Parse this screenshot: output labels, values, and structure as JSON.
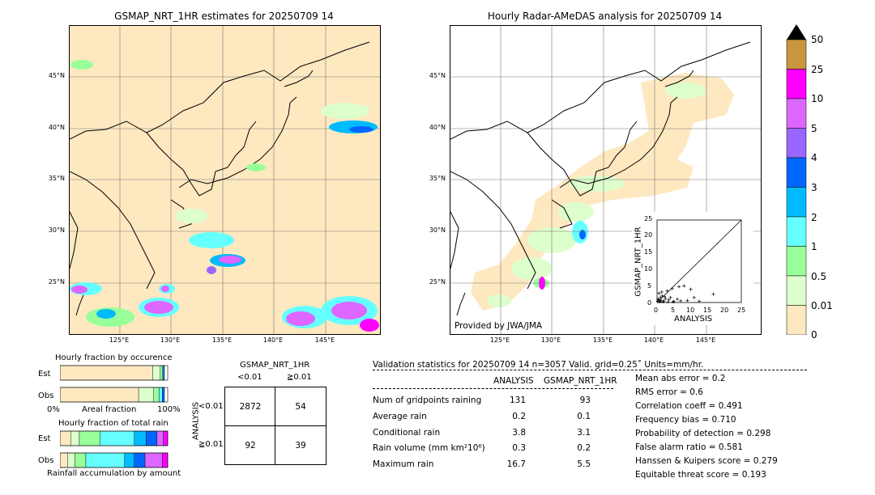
{
  "left_map": {
    "title": "GSMAP_NRT_1HR estimates for 20250709 14",
    "lat_labels": [
      "45°N",
      "40°N",
      "35°N",
      "30°N",
      "25°N"
    ],
    "lon_labels": [
      "125°E",
      "130°E",
      "135°E",
      "140°E",
      "145°E"
    ]
  },
  "right_map": {
    "title": "Hourly Radar-AMeDAS analysis for 20250709 14",
    "credit": "Provided by JWA/JMA",
    "lat_labels": [
      "45°N",
      "40°N",
      "35°N",
      "30°N",
      "25°N"
    ],
    "lon_labels": [
      "125°E",
      "130°E",
      "135°E",
      "140°E",
      "145°E"
    ]
  },
  "colorbar": {
    "labels": [
      "50",
      "25",
      "10",
      "5",
      "4",
      "3",
      "2",
      "1",
      "0.5",
      "0.01",
      "0"
    ],
    "colors": [
      "#c8963c",
      "#ff00ff",
      "#dd66ff",
      "#9966ff",
      "#0066ff",
      "#00bbff",
      "#66ffff",
      "#99ff99",
      "#ddffcc",
      "#fde8c0"
    ]
  },
  "chart_data": [
    {
      "type": "scatter",
      "xlabel": "ANALYSIS",
      "ylabel": "GSMAP_NRT_1HR",
      "xlim": [
        0,
        25
      ],
      "ylim": [
        0,
        25
      ],
      "x_ticks": [
        "0",
        "5",
        "10",
        "15",
        "20",
        "25"
      ],
      "y_ticks": [
        "0",
        "5",
        "10",
        "15",
        "20",
        "25"
      ],
      "points": [
        [
          0.2,
          0.3
        ],
        [
          0.5,
          0.8
        ],
        [
          0.8,
          0.4
        ],
        [
          1.0,
          1.5
        ],
        [
          1.2,
          0.6
        ],
        [
          1.5,
          2.0
        ],
        [
          0.3,
          1.0
        ],
        [
          2.0,
          0.5
        ],
        [
          2.5,
          1.2
        ],
        [
          3.0,
          3.5
        ],
        [
          1.8,
          0.2
        ],
        [
          3.5,
          0.8
        ],
        [
          4.0,
          1.5
        ],
        [
          4.5,
          4.2
        ],
        [
          5.0,
          0.3
        ],
        [
          6.0,
          1.0
        ],
        [
          6.5,
          4.8
        ],
        [
          7.0,
          0.5
        ],
        [
          8.0,
          5.0
        ],
        [
          9.0,
          0.6
        ],
        [
          10.0,
          4.0
        ],
        [
          11.0,
          1.5
        ],
        [
          12.5,
          0.4
        ],
        [
          16.7,
          2.5
        ],
        [
          0.6,
          2.8
        ],
        [
          1.4,
          3.2
        ],
        [
          2.2,
          1.8
        ],
        [
          0.9,
          0.1
        ],
        [
          3.2,
          0.1
        ],
        [
          4.8,
          0.2
        ]
      ]
    },
    {
      "type": "bar",
      "title": "Hourly fraction by occurence",
      "categories": [
        "Est",
        "Obs"
      ],
      "x_left_label": "0%",
      "x_mid_label": "Areal fraction",
      "x_right_label": "100%",
      "series": [
        {
          "values": [
            0.86,
            0.73
          ]
        },
        {
          "values": [
            0.07,
            0.14
          ]
        },
        {
          "values": [
            0.02,
            0.05
          ]
        },
        {
          "values": [
            0.01,
            0.03
          ]
        },
        {
          "values": [
            0.01,
            0.02
          ]
        }
      ]
    },
    {
      "type": "bar",
      "title": "Hourly fraction of total rain",
      "categories": [
        "Est",
        "Obs"
      ],
      "x_mid_label": "Rainfall accumulation by amount",
      "series": [
        {
          "values": [
            0.1,
            0.07
          ]
        },
        {
          "values": [
            0.08,
            0.07
          ]
        },
        {
          "values": [
            0.19,
            0.1
          ]
        },
        {
          "values": [
            0.32,
            0.36
          ]
        },
        {
          "values": [
            0.11,
            0.09
          ]
        },
        {
          "values": [
            0.1,
            0.1
          ]
        },
        {
          "values": [
            0.06,
            0.16
          ]
        },
        {
          "values": [
            0.04,
            0.05
          ]
        }
      ]
    }
  ],
  "contingency": {
    "title": "GSMAP_NRT_1HR",
    "col_headers": [
      "<0.01",
      "≧0.01"
    ],
    "row_label": "ANALYSIS",
    "row_headers": [
      "<0.01",
      "≧0.01"
    ],
    "cells": [
      [
        "2872",
        "54"
      ],
      [
        "92",
        "39"
      ]
    ]
  },
  "validation": {
    "header": "Validation statistics for 20250709 14  n=3057 Valid. grid=0.25˚ Units=mm/hr.",
    "col_analysis": "ANALYSIS",
    "col_gsmap": "GSMAP_NRT_1HR",
    "rows": [
      {
        "label": "Num of gridpoints raining",
        "analysis": "131",
        "gsmap": "93"
      },
      {
        "label": "Average rain",
        "analysis": "0.2",
        "gsmap": "0.1"
      },
      {
        "label": "Conditional rain",
        "analysis": "3.8",
        "gsmap": "3.1"
      },
      {
        "label": "Rain volume (mm km²10⁶)",
        "analysis": "0.3",
        "gsmap": "0.2"
      },
      {
        "label": "Maximum rain",
        "analysis": "16.7",
        "gsmap": "5.5"
      }
    ],
    "scores": [
      "Mean abs error =    0.2",
      "RMS error =    0.6",
      "Correlation coeff =  0.491",
      "Frequency bias =  0.710",
      "Probability of detection =  0.298",
      "False alarm ratio =  0.581",
      "Hanssen & Kuipers score =  0.279",
      "Equitable threat score =  0.193"
    ]
  }
}
